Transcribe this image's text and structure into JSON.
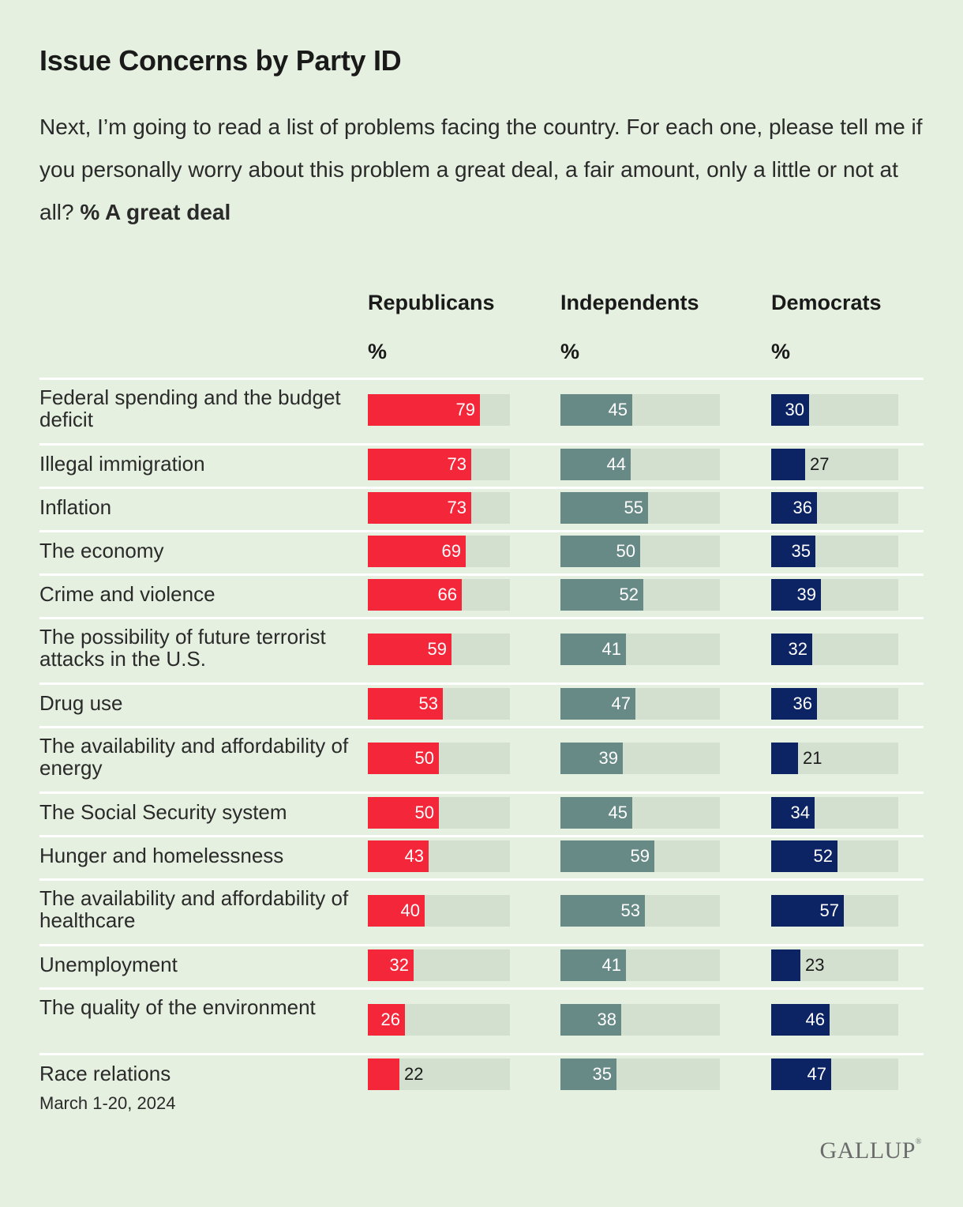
{
  "title": "Issue Concerns by Party ID",
  "subtitle_text": "Next, I’m going to read a list of problems facing the country. For each one, please tell me if you personally worry about this problem a great deal, a fair amount, only a little or not at all?",
  "subtitle_bold": "% A great deal",
  "columns": [
    {
      "name": "Republicans",
      "unit": "%",
      "color": "#f4273a"
    },
    {
      "name": "Independents",
      "unit": "%",
      "color": "#678a87"
    },
    {
      "name": "Democrats",
      "unit": "%",
      "color": "#0c2463"
    }
  ],
  "footer": "March 1-20, 2024",
  "logo": "GALLUP",
  "chart_data": {
    "type": "bar",
    "title": "Issue Concerns by Party ID",
    "value_label": "% A great deal",
    "xlim": [
      0,
      100
    ],
    "categories": [
      "Federal spending and the budget deficit",
      "Illegal immigration",
      "Inflation",
      "The economy",
      "Crime and violence",
      "The possibility of future terrorist attacks in the U.S.",
      "Drug use",
      "The availability and affordability of energy",
      "The Social Security system",
      "Hunger and homelessness",
      "The availability and affordability of healthcare",
      "Unemployment",
      "The quality of the environment",
      "Race relations"
    ],
    "series": [
      {
        "name": "Republicans",
        "values": [
          79,
          73,
          73,
          69,
          66,
          59,
          53,
          50,
          50,
          43,
          40,
          32,
          26,
          22
        ]
      },
      {
        "name": "Independents",
        "values": [
          45,
          44,
          55,
          50,
          52,
          41,
          47,
          39,
          45,
          59,
          53,
          41,
          38,
          35
        ]
      },
      {
        "name": "Democrats",
        "values": [
          30,
          27,
          36,
          35,
          39,
          32,
          36,
          21,
          34,
          52,
          57,
          23,
          46,
          47
        ]
      }
    ]
  }
}
